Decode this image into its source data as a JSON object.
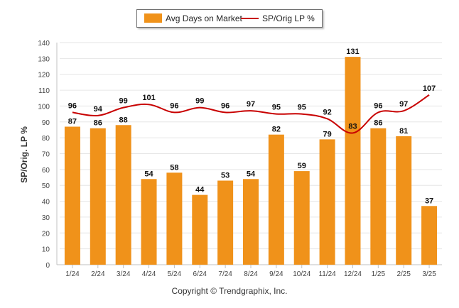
{
  "chart_data": {
    "type": "bar",
    "categories": [
      "1/24",
      "2/24",
      "3/24",
      "4/24",
      "5/24",
      "6/24",
      "7/24",
      "8/24",
      "9/24",
      "10/24",
      "11/24",
      "12/24",
      "1/25",
      "2/25",
      "3/25"
    ],
    "series": [
      {
        "name": "Avg Days on Market",
        "kind": "bar",
        "color": "#f0921a",
        "values": [
          87,
          86,
          88,
          54,
          58,
          44,
          53,
          54,
          82,
          59,
          79,
          131,
          86,
          81,
          37
        ]
      },
      {
        "name": "SP/Orig LP %",
        "kind": "line",
        "color": "#c80000",
        "values": [
          96,
          94,
          99,
          101,
          96,
          99,
          96,
          97,
          95,
          95,
          92,
          83,
          96,
          97,
          107
        ]
      }
    ],
    "ylabel": "SP/Orig. LP %",
    "ylim": [
      0,
      140
    ],
    "yticks": [
      0,
      10,
      20,
      30,
      40,
      50,
      60,
      70,
      80,
      90,
      100,
      110,
      120,
      130,
      140
    ],
    "grid": true,
    "legend_position": "top-center"
  },
  "footer": {
    "credit": "Copyright © Trendgraphix, Inc."
  }
}
